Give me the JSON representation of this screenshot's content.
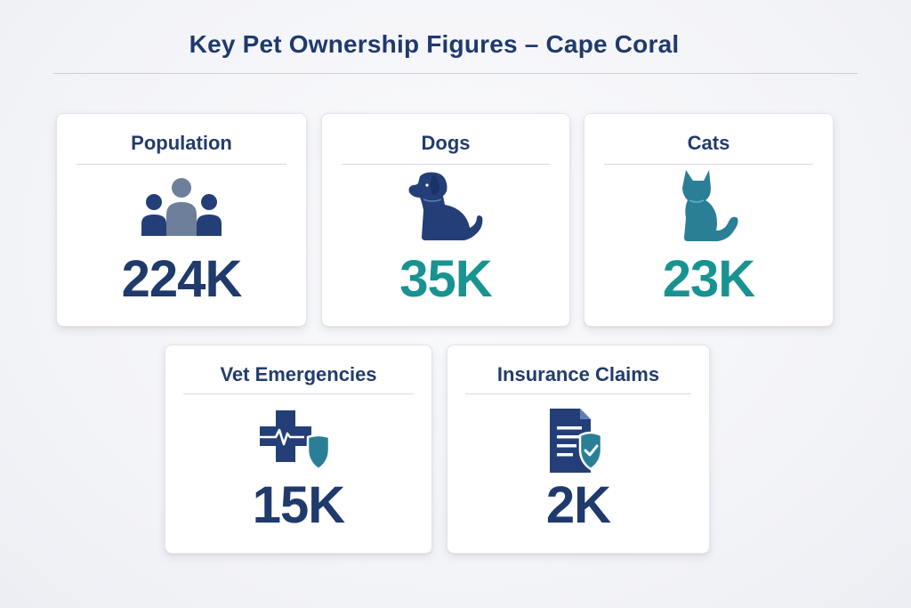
{
  "title": "Key Pet Ownership Figures – Cape Coral",
  "colors": {
    "navy": "#1f3a6b",
    "teal": "#199391",
    "icon_navy": "#243f78",
    "icon_teal": "#2a7f97"
  },
  "cards": [
    {
      "label": "Population",
      "value": "224K",
      "icon": "people-group-icon"
    },
    {
      "label": "Dogs",
      "value": "35K",
      "icon": "dog-icon"
    },
    {
      "label": "Cats",
      "value": "23K",
      "icon": "cat-icon"
    },
    {
      "label": "Vet Emergencies",
      "value": "15K",
      "icon": "medical-cross-shield-icon"
    },
    {
      "label": "Insurance Claims",
      "value": "2K",
      "icon": "document-shield-icon"
    }
  ]
}
